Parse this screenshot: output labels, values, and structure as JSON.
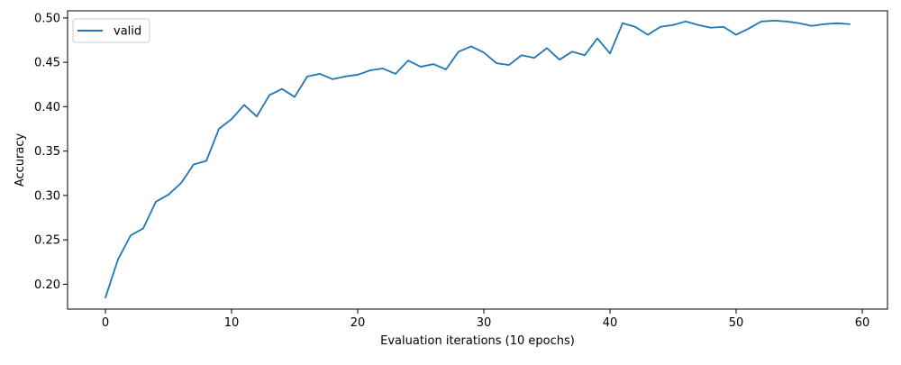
{
  "chart_data": {
    "type": "line",
    "title": "",
    "xlabel": "Evaluation iterations (10 epochs)",
    "ylabel": "Accuracy",
    "xlim": [
      -3,
      62
    ],
    "ylim": [
      0.172,
      0.508
    ],
    "xticks": [
      0,
      10,
      20,
      30,
      40,
      50,
      60
    ],
    "xtick_labels": [
      "0",
      "10",
      "20",
      "30",
      "40",
      "50",
      "60"
    ],
    "yticks": [
      0.2,
      0.25,
      0.3,
      0.35,
      0.4,
      0.45,
      0.5
    ],
    "ytick_labels": [
      "0.20",
      "0.25",
      "0.30",
      "0.35",
      "0.40",
      "0.45",
      "0.50"
    ],
    "grid": false,
    "legend": "top-left",
    "series": [
      {
        "name": "valid",
        "color": "#1f77b4",
        "x": [
          0,
          1,
          2,
          3,
          4,
          5,
          6,
          7,
          8,
          9,
          10,
          11,
          12,
          13,
          14,
          15,
          16,
          17,
          18,
          19,
          20,
          21,
          22,
          23,
          24,
          25,
          26,
          27,
          28,
          29,
          30,
          31,
          32,
          33,
          34,
          35,
          36,
          37,
          38,
          39,
          40,
          41,
          42,
          43,
          44,
          45,
          46,
          47,
          48,
          49,
          50,
          51,
          52,
          53,
          54,
          55,
          56,
          57,
          58,
          59
        ],
        "y": [
          0.185,
          0.228,
          0.255,
          0.263,
          0.293,
          0.301,
          0.314,
          0.335,
          0.339,
          0.375,
          0.386,
          0.402,
          0.389,
          0.413,
          0.42,
          0.411,
          0.434,
          0.437,
          0.431,
          0.434,
          0.436,
          0.441,
          0.443,
          0.437,
          0.452,
          0.445,
          0.448,
          0.442,
          0.462,
          0.468,
          0.461,
          0.449,
          0.447,
          0.458,
          0.455,
          0.466,
          0.453,
          0.462,
          0.458,
          0.477,
          0.46,
          0.494,
          0.49,
          0.481,
          0.49,
          0.492,
          0.496,
          0.492,
          0.489,
          0.49,
          0.481,
          0.488,
          0.496,
          0.497,
          0.496,
          0.494,
          0.491,
          0.493,
          0.494,
          0.493
        ]
      }
    ]
  }
}
